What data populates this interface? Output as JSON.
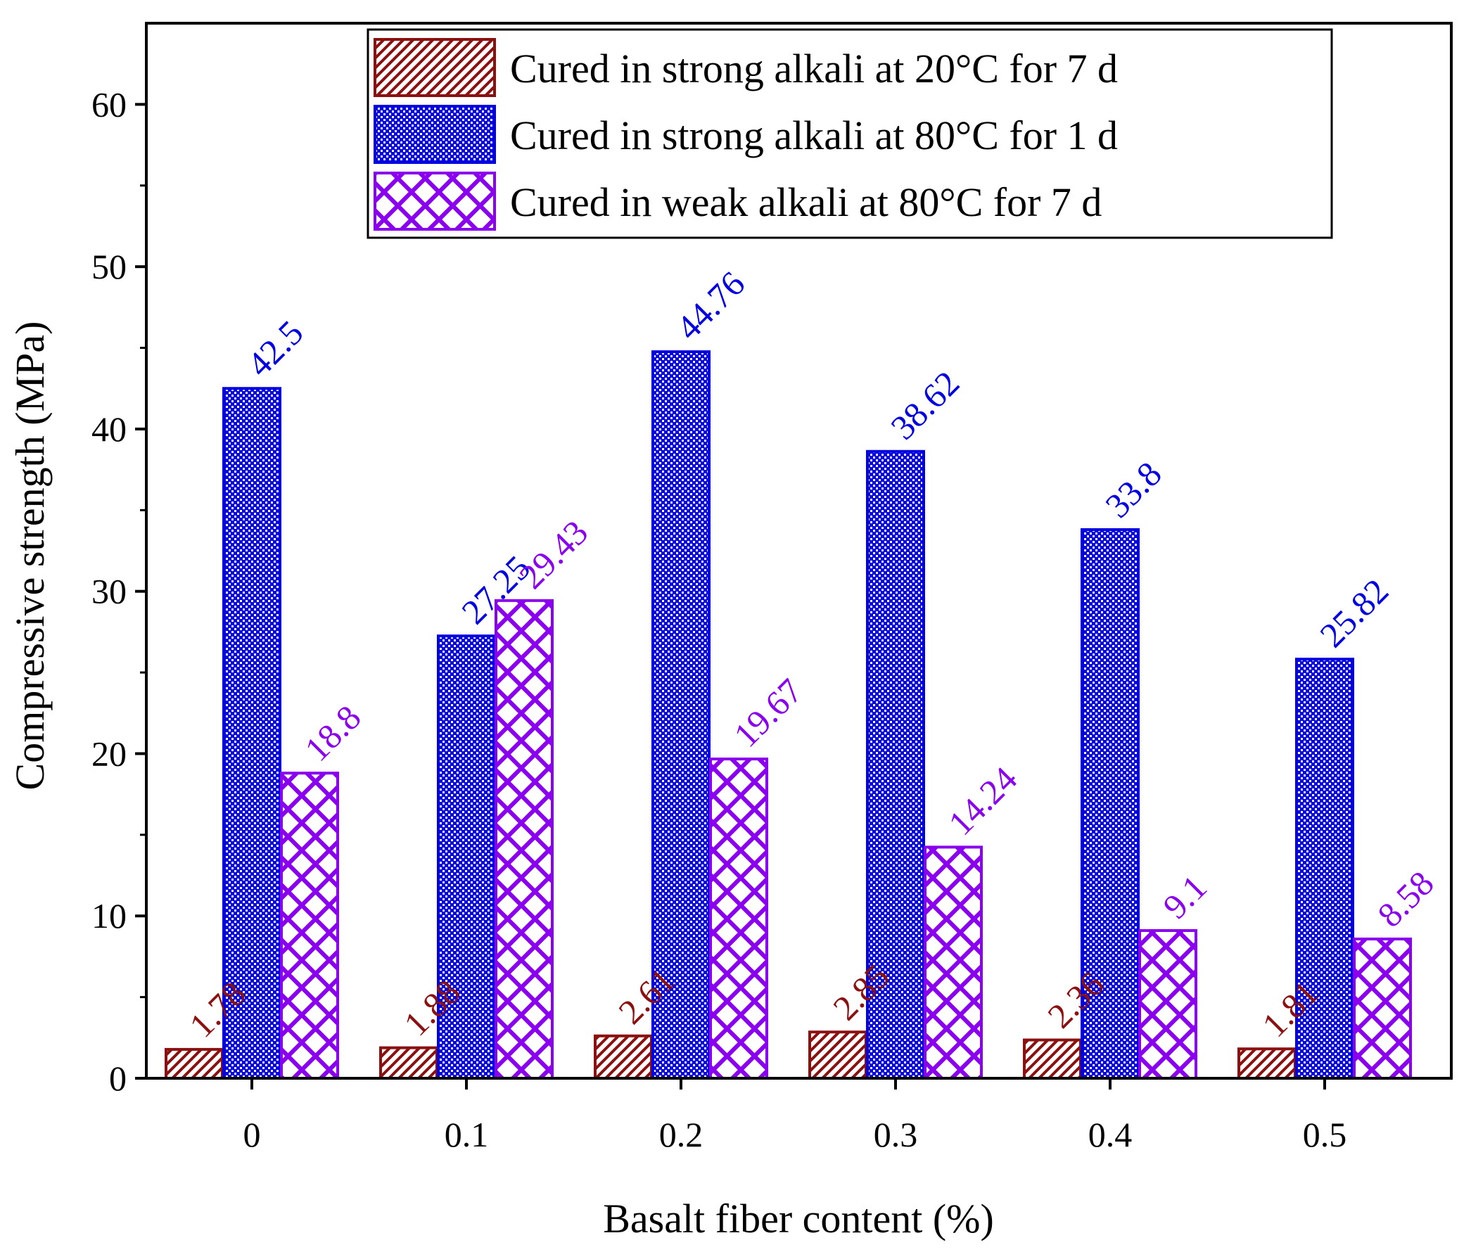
{
  "chart_data": {
    "type": "bar",
    "title": "",
    "xlabel": "Basalt fiber content (%)",
    "ylabel": "Compressive strength (MPa)",
    "ylim": [
      0,
      65
    ],
    "yticks": [
      0,
      10,
      20,
      30,
      40,
      50,
      60
    ],
    "grid": false,
    "legend_position": "top-right",
    "categories": [
      "0",
      "0.1",
      "0.2",
      "0.3",
      "0.4",
      "0.5"
    ],
    "series": [
      {
        "name": "Cured in strong alkali at 20°C for 7 d",
        "color": "#8b1010",
        "pattern": "diagonal-hatch",
        "values": [
          1.78,
          1.88,
          2.61,
          2.85,
          2.36,
          1.81
        ],
        "labels": [
          "1.78",
          "1.88",
          "2.61",
          "2.85",
          "2.36",
          "1.81"
        ]
      },
      {
        "name": "Cured in strong alkali at 80°C for 1 d",
        "color": "#0000e0",
        "pattern": "dense-dots",
        "values": [
          42.5,
          27.25,
          44.76,
          38.62,
          33.8,
          25.82
        ],
        "labels": [
          "42.5",
          "27.25",
          "44.76",
          "38.62",
          "33.8",
          "25.82"
        ]
      },
      {
        "name": "Cured in weak alkali at 80°C for 7 d",
        "color": "#8a00ee",
        "pattern": "crosshatch",
        "values": [
          18.8,
          29.43,
          19.67,
          14.24,
          9.1,
          8.58
        ],
        "labels": [
          "18.8",
          "29.43",
          "19.67",
          "14.24",
          "9.1",
          "8.58"
        ]
      }
    ]
  }
}
